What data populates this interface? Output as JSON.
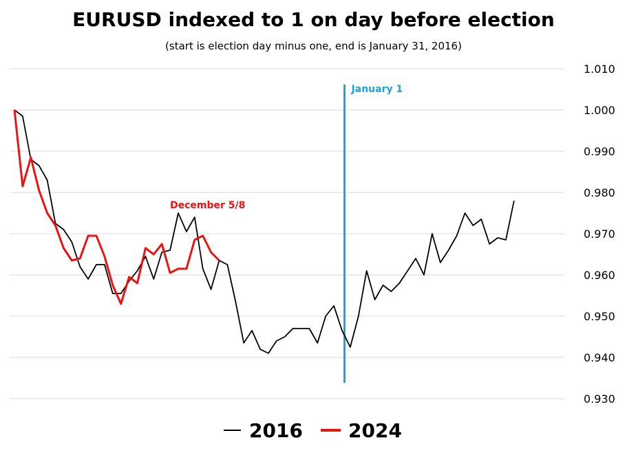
{
  "chart_data": {
    "type": "line",
    "title": "EURUSD indexed to 1 on day before election",
    "subtitle": "(start is election day minus one, end is January 31, 2016)",
    "xlabel": "",
    "ylabel": "",
    "ylim": [
      0.93,
      1.01
    ],
    "yticks": [
      "1.010",
      "1.000",
      "0.990",
      "0.980",
      "0.970",
      "0.960",
      "0.950",
      "0.940",
      "0.930"
    ],
    "grid": true,
    "legend_position": "bottom",
    "series": [
      {
        "name": "2016",
        "color": "#000000",
        "values": [
          1.0,
          0.9985,
          0.988,
          0.9865,
          0.983,
          0.9725,
          0.971,
          0.968,
          0.962,
          0.959,
          0.9625,
          0.9625,
          0.9555,
          0.9555,
          0.9585,
          0.961,
          0.9645,
          0.959,
          0.9655,
          0.966,
          0.975,
          0.9705,
          0.974,
          0.9615,
          0.9565,
          0.9635,
          0.9625,
          0.9535,
          0.9435,
          0.9465,
          0.942,
          0.941,
          0.944,
          0.945,
          0.947,
          0.947,
          0.947,
          0.9435,
          0.95,
          0.9525,
          0.9465,
          0.9425,
          0.95,
          0.961,
          0.954,
          0.9575,
          0.956,
          0.958,
          0.961,
          0.964,
          0.96,
          0.97,
          0.963,
          0.966,
          0.9695,
          0.975,
          0.972,
          0.9735,
          0.9675,
          0.969,
          0.9685,
          0.978
        ]
      },
      {
        "name": "2024",
        "color": "#ee1111",
        "values": [
          1.0,
          0.9815,
          0.9885,
          0.9805,
          0.975,
          0.972,
          0.9665,
          0.9635,
          0.964,
          0.9695,
          0.9695,
          0.9645,
          0.9575,
          0.953,
          0.9595,
          0.958,
          0.9665,
          0.965,
          0.9675,
          0.9605,
          0.9615,
          0.9615,
          0.9685,
          0.9695,
          0.9655,
          0.9635
        ]
      }
    ],
    "annotations": [
      {
        "text": "December 5/8",
        "color": "#ee1111"
      },
      {
        "text": "January 1",
        "color": "#1fa3d4"
      }
    ]
  }
}
